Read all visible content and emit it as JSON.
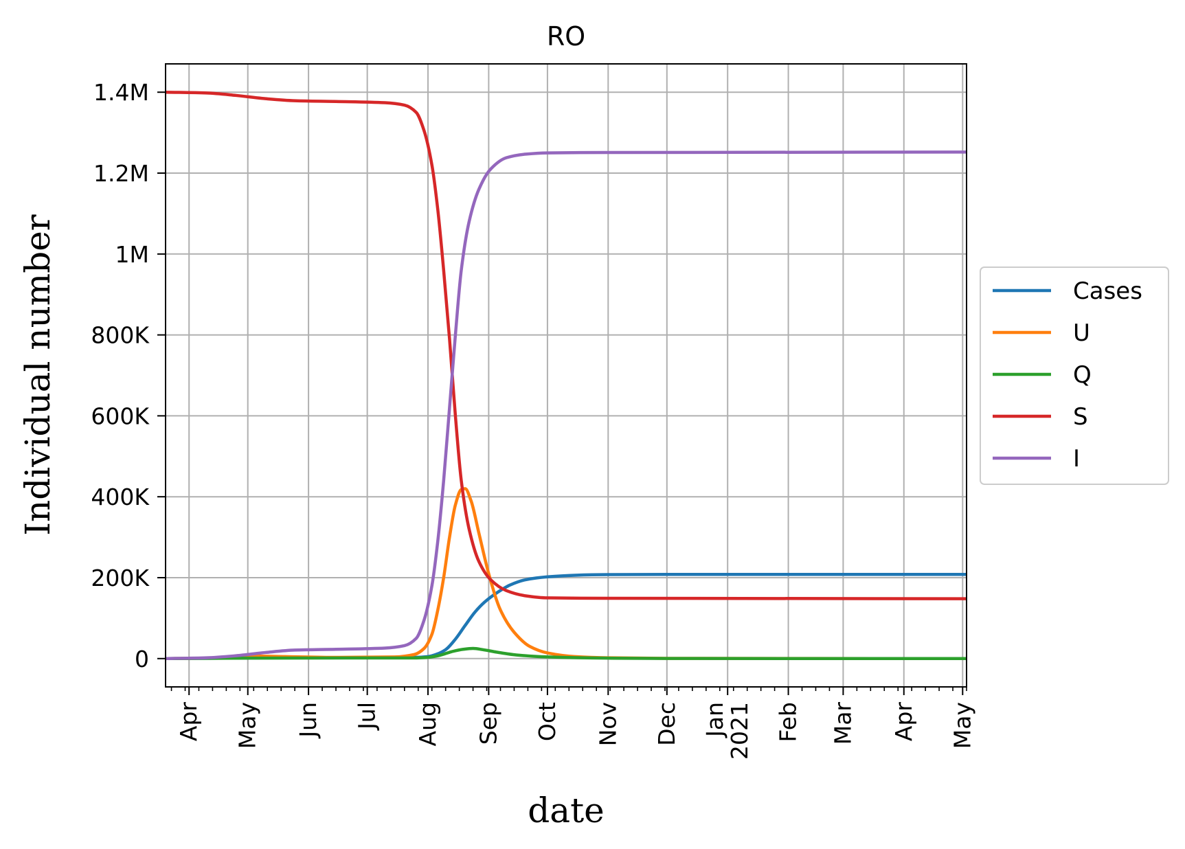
{
  "chart_data": {
    "type": "line",
    "title": "RO",
    "xlabel": "date",
    "ylabel": "Individual number",
    "grid": true,
    "legend_position": "center-right, outside the plot",
    "xlim": [
      "2020-03-20",
      "2021-05-03"
    ],
    "ylim": [
      -70000,
      1470000
    ],
    "x_ticks": [
      {
        "date": "2020-04-01",
        "label": "Apr"
      },
      {
        "date": "2020-05-01",
        "label": "May"
      },
      {
        "date": "2020-06-01",
        "label": "Jun"
      },
      {
        "date": "2020-07-01",
        "label": "Jul"
      },
      {
        "date": "2020-08-01",
        "label": "Aug"
      },
      {
        "date": "2020-09-01",
        "label": "Sep"
      },
      {
        "date": "2020-10-01",
        "label": "Oct"
      },
      {
        "date": "2020-11-01",
        "label": "Nov"
      },
      {
        "date": "2020-12-01",
        "label": "Dec"
      },
      {
        "date": "2021-01-01",
        "label": "Jan\n2021"
      },
      {
        "date": "2021-02-01",
        "label": "Feb"
      },
      {
        "date": "2021-03-01",
        "label": "Mar"
      },
      {
        "date": "2021-04-01",
        "label": "Apr"
      },
      {
        "date": "2021-05-01",
        "label": "May"
      }
    ],
    "y_ticks": [
      {
        "value": 0,
        "label": "0"
      },
      {
        "value": 200000,
        "label": "200K"
      },
      {
        "value": 400000,
        "label": "400K"
      },
      {
        "value": 600000,
        "label": "600K"
      },
      {
        "value": 800000,
        "label": "800K"
      },
      {
        "value": 1000000,
        "label": "1M"
      },
      {
        "value": 1200000,
        "label": "1.2M"
      },
      {
        "value": 1400000,
        "label": "1.4M"
      }
    ],
    "series": [
      {
        "name": "Cases",
        "color": "#1f77b4",
        "points": [
          [
            "2020-03-20",
            0
          ],
          [
            "2020-04-20",
            1000
          ],
          [
            "2020-05-20",
            2000
          ],
          [
            "2020-07-01",
            2500
          ],
          [
            "2020-07-25",
            3000
          ],
          [
            "2020-08-01",
            5000
          ],
          [
            "2020-08-05",
            10000
          ],
          [
            "2020-08-10",
            22000
          ],
          [
            "2020-08-15",
            48000
          ],
          [
            "2020-08-20",
            82000
          ],
          [
            "2020-08-25",
            115000
          ],
          [
            "2020-08-30",
            140000
          ],
          [
            "2020-09-05",
            162000
          ],
          [
            "2020-09-12",
            182000
          ],
          [
            "2020-09-20",
            195000
          ],
          [
            "2020-10-01",
            202000
          ],
          [
            "2020-10-15",
            206000
          ],
          [
            "2020-11-01",
            207500
          ],
          [
            "2020-12-01",
            208000
          ],
          [
            "2021-05-03",
            208000
          ]
        ]
      },
      {
        "name": "U",
        "color": "#ff7f0e",
        "points": [
          [
            "2020-03-20",
            0
          ],
          [
            "2020-04-20",
            2000
          ],
          [
            "2020-05-05",
            6000
          ],
          [
            "2020-05-20",
            5000
          ],
          [
            "2020-06-15",
            3000
          ],
          [
            "2020-07-15",
            4000
          ],
          [
            "2020-07-25",
            10000
          ],
          [
            "2020-07-30",
            25000
          ],
          [
            "2020-08-03",
            60000
          ],
          [
            "2020-08-06",
            120000
          ],
          [
            "2020-08-09",
            200000
          ],
          [
            "2020-08-12",
            300000
          ],
          [
            "2020-08-15",
            380000
          ],
          [
            "2020-08-18",
            418000
          ],
          [
            "2020-08-20",
            420000
          ],
          [
            "2020-08-23",
            390000
          ],
          [
            "2020-08-27",
            310000
          ],
          [
            "2020-09-01",
            210000
          ],
          [
            "2020-09-07",
            120000
          ],
          [
            "2020-09-14",
            65000
          ],
          [
            "2020-09-22",
            30000
          ],
          [
            "2020-10-01",
            14000
          ],
          [
            "2020-10-15",
            5000
          ],
          [
            "2020-11-01",
            2000
          ],
          [
            "2020-12-01",
            500
          ],
          [
            "2021-05-03",
            0
          ]
        ]
      },
      {
        "name": "Q",
        "color": "#2ca02c",
        "points": [
          [
            "2020-03-20",
            0
          ],
          [
            "2020-05-01",
            1000
          ],
          [
            "2020-07-01",
            1500
          ],
          [
            "2020-07-25",
            1500
          ],
          [
            "2020-08-01",
            3000
          ],
          [
            "2020-08-07",
            8000
          ],
          [
            "2020-08-13",
            17000
          ],
          [
            "2020-08-19",
            23000
          ],
          [
            "2020-08-24",
            25000
          ],
          [
            "2020-08-29",
            22000
          ],
          [
            "2020-09-05",
            16000
          ],
          [
            "2020-09-15",
            9000
          ],
          [
            "2020-10-01",
            4000
          ],
          [
            "2020-11-01",
            1000
          ],
          [
            "2020-12-01",
            200
          ],
          [
            "2021-05-03",
            0
          ]
        ]
      },
      {
        "name": "S",
        "color": "#d62728",
        "points": [
          [
            "2020-03-20",
            1400000
          ],
          [
            "2020-04-10",
            1398000
          ],
          [
            "2020-04-25",
            1392000
          ],
          [
            "2020-05-10",
            1384000
          ],
          [
            "2020-05-25",
            1379000
          ],
          [
            "2020-06-15",
            1377000
          ],
          [
            "2020-07-10",
            1374000
          ],
          [
            "2020-07-20",
            1368000
          ],
          [
            "2020-07-26",
            1350000
          ],
          [
            "2020-07-30",
            1305000
          ],
          [
            "2020-08-03",
            1220000
          ],
          [
            "2020-08-06",
            1110000
          ],
          [
            "2020-08-09",
            960000
          ],
          [
            "2020-08-12",
            790000
          ],
          [
            "2020-08-15",
            600000
          ],
          [
            "2020-08-18",
            440000
          ],
          [
            "2020-08-22",
            320000
          ],
          [
            "2020-08-27",
            240000
          ],
          [
            "2020-09-02",
            195000
          ],
          [
            "2020-09-10",
            168000
          ],
          [
            "2020-09-20",
            155000
          ],
          [
            "2020-10-01",
            150000
          ],
          [
            "2020-11-01",
            149000
          ],
          [
            "2021-05-03",
            148000
          ]
        ]
      },
      {
        "name": "I",
        "color": "#9467bd",
        "points": [
          [
            "2020-03-20",
            0
          ],
          [
            "2020-04-10",
            2000
          ],
          [
            "2020-04-25",
            7000
          ],
          [
            "2020-05-10",
            15000
          ],
          [
            "2020-05-25",
            21000
          ],
          [
            "2020-06-15",
            23000
          ],
          [
            "2020-07-10",
            26000
          ],
          [
            "2020-07-20",
            32000
          ],
          [
            "2020-07-26",
            50000
          ],
          [
            "2020-07-30",
            95000
          ],
          [
            "2020-08-03",
            180000
          ],
          [
            "2020-08-06",
            290000
          ],
          [
            "2020-08-09",
            440000
          ],
          [
            "2020-08-12",
            620000
          ],
          [
            "2020-08-15",
            800000
          ],
          [
            "2020-08-18",
            960000
          ],
          [
            "2020-08-22",
            1080000
          ],
          [
            "2020-08-27",
            1160000
          ],
          [
            "2020-09-02",
            1210000
          ],
          [
            "2020-09-10",
            1238000
          ],
          [
            "2020-09-20",
            1247000
          ],
          [
            "2020-10-01",
            1250000
          ],
          [
            "2020-11-01",
            1251000
          ],
          [
            "2021-05-03",
            1252000
          ]
        ]
      }
    ]
  }
}
